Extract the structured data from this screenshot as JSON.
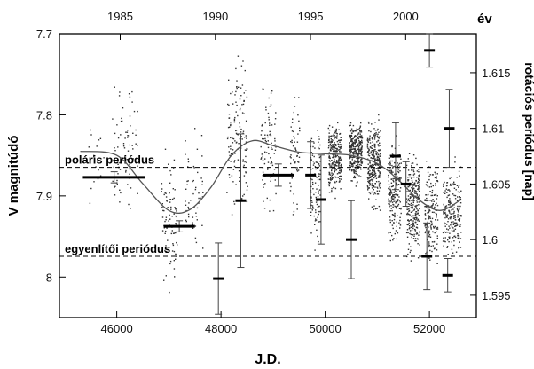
{
  "chart_data": {
    "type": "scatter",
    "xlabel": "J.D.",
    "ylabel": "V magnitúdó",
    "y2label": "rotációs periódus [nap]",
    "top_axis_label": "év",
    "xlim": [
      44900,
      52900
    ],
    "ylim": [
      8.05,
      7.7
    ],
    "y2lim": [
      1.593,
      1.6185
    ],
    "xticks": [
      46000,
      48000,
      50000,
      52000
    ],
    "yticks": [
      7.7,
      7.8,
      7.9,
      8
    ],
    "ytick_labels": [
      "7.7",
      "7.8",
      "7.9",
      "8"
    ],
    "y2ticks": [
      1.595,
      1.6,
      1.605,
      1.61,
      1.615
    ],
    "y2tick_labels": [
      "1.595",
      "1.6",
      "1.605",
      "1.61",
      "1.615"
    ],
    "top_ticks": [
      {
        "label": "1985",
        "jd": 46066
      },
      {
        "label": "1990",
        "jd": 47892
      },
      {
        "label": "1995",
        "jd": 49718
      },
      {
        "label": "2000",
        "jd": 51544
      }
    ],
    "reference_lines": [
      {
        "label": "poláris periódus",
        "period": 1.6065
      },
      {
        "label": "egyenlítői periódus",
        "period": 1.5985
      }
    ],
    "fit_curve": {
      "jd": [
        45300,
        46000,
        46500,
        47000,
        47400,
        47800,
        48200,
        48600,
        49000,
        49500,
        50000,
        50500,
        51000,
        51400,
        51800,
        52200,
        52600
      ],
      "mag": [
        7.845,
        7.85,
        7.885,
        7.918,
        7.917,
        7.89,
        7.85,
        7.832,
        7.838,
        7.846,
        7.848,
        7.85,
        7.86,
        7.88,
        7.905,
        7.918,
        7.905
      ]
    },
    "period_estimates": [
      {
        "jd": 45950,
        "jd_err": 600,
        "period": 1.6056,
        "period_err": 0.0005
      },
      {
        "jd": 47200,
        "jd_err": 300,
        "period": 1.6012,
        "period_err": 0.0005
      },
      {
        "jd": 47950,
        "jd_err": 0,
        "period": 1.5965,
        "period_err": 0.0032
      },
      {
        "jd": 48380,
        "jd_err": 0,
        "period": 1.6035,
        "period_err": 0.006
      },
      {
        "jd": 49100,
        "jd_err": 300,
        "period": 1.6058,
        "period_err": 0.001
      },
      {
        "jd": 49720,
        "jd_err": 0,
        "period": 1.6058,
        "period_err": 0.003
      },
      {
        "jd": 49920,
        "jd_err": 0,
        "period": 1.6036,
        "period_err": 0.004
      },
      {
        "jd": 50500,
        "jd_err": 0,
        "period": 1.6,
        "period_err": 0.0035
      },
      {
        "jd": 51350,
        "jd_err": 0,
        "period": 1.6075,
        "period_err": 0.003
      },
      {
        "jd": 51550,
        "jd_err": 0,
        "period": 1.605,
        "period_err": 0.002
      },
      {
        "jd": 51950,
        "jd_err": 0,
        "period": 1.5985,
        "period_err": 0.003
      },
      {
        "jd": 52000,
        "jd_err": 0,
        "period": 1.617,
        "period_err": 0.0015
      },
      {
        "jd": 52350,
        "jd_err": 0,
        "period": 1.5968,
        "period_err": 0.0015
      },
      {
        "jd": 52380,
        "jd_err": 0,
        "period": 1.61,
        "period_err": 0.0035
      }
    ],
    "photometry_seasons": [
      {
        "jd_start": 45400,
        "jd_end": 45750,
        "mag_center": 7.855,
        "mag_spread": 0.04,
        "n": 18
      },
      {
        "jd_start": 45900,
        "jd_end": 46400,
        "mag_center": 7.84,
        "mag_spread": 0.05,
        "n": 80
      },
      {
        "jd_start": 46850,
        "jd_end": 47150,
        "mag_center": 7.93,
        "mag_spread": 0.055,
        "n": 90
      },
      {
        "jd_start": 47300,
        "jd_end": 47650,
        "mag_center": 7.9,
        "mag_spread": 0.05,
        "n": 55
      },
      {
        "jd_start": 48100,
        "jd_end": 48500,
        "mag_center": 7.83,
        "mag_spread": 0.06,
        "n": 140
      },
      {
        "jd_start": 48750,
        "jd_end": 49050,
        "mag_center": 7.84,
        "mag_spread": 0.05,
        "n": 90
      },
      {
        "jd_start": 49300,
        "jd_end": 49500,
        "mag_center": 7.85,
        "mag_spread": 0.05,
        "n": 55
      },
      {
        "jd_start": 49700,
        "jd_end": 49900,
        "mag_center": 7.88,
        "mag_spread": 0.05,
        "n": 110
      },
      {
        "jd_start": 50050,
        "jd_end": 50300,
        "mag_center": 7.85,
        "mag_spread": 0.03,
        "n": 260
      },
      {
        "jd_start": 50450,
        "jd_end": 50700,
        "mag_center": 7.845,
        "mag_spread": 0.025,
        "n": 320
      },
      {
        "jd_start": 50800,
        "jd_end": 51050,
        "mag_center": 7.86,
        "mag_spread": 0.035,
        "n": 300
      },
      {
        "jd_start": 51200,
        "jd_end": 51450,
        "mag_center": 7.895,
        "mag_spread": 0.04,
        "n": 200
      },
      {
        "jd_start": 51550,
        "jd_end": 51800,
        "mag_center": 7.91,
        "mag_spread": 0.04,
        "n": 260
      },
      {
        "jd_start": 51900,
        "jd_end": 52150,
        "mag_center": 7.92,
        "mag_spread": 0.04,
        "n": 180
      },
      {
        "jd_start": 52250,
        "jd_end": 52600,
        "mag_center": 7.92,
        "mag_spread": 0.04,
        "n": 220
      }
    ]
  }
}
